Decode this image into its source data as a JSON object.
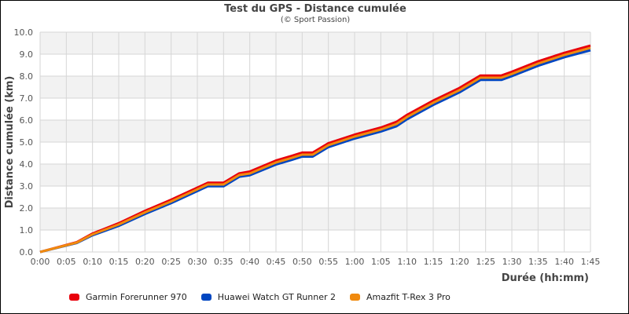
{
  "header": {
    "title": "Test du GPS - Distance cumulée",
    "subtitle": "(© Sport Passion)"
  },
  "legend": [
    {
      "label": "Garmin Forerunner 970",
      "color": "#e8000b"
    },
    {
      "label": "Huawei Watch GT Runner 2",
      "color": "#0046c1"
    },
    {
      "label": "Amazfit T-Rex 3 Pro",
      "color": "#f08a0e"
    }
  ],
  "chart_data": {
    "type": "line",
    "title": "Test du GPS - Distance cumulée",
    "subtitle": "(© Sport Passion)",
    "xlabel": "Durée (hh:mm)",
    "ylabel": "Distance cumulée (km)",
    "xlim": [
      0,
      105
    ],
    "ylim": [
      0,
      10
    ],
    "grid": true,
    "legend_position": "bottom",
    "x_tick_labels": [
      "0:00",
      "0:05",
      "0:10",
      "0:15",
      "0:20",
      "0:25",
      "0:30",
      "0:35",
      "0:40",
      "0:45",
      "0:50",
      "0:55",
      "1:00",
      "1:05",
      "1:10",
      "1:15",
      "1:20",
      "1:25",
      "1:30",
      "1:35",
      "1:40",
      "1:45"
    ],
    "y_tick_labels": [
      "0.0",
      "1.0",
      "2.0",
      "3.0",
      "4.0",
      "5.0",
      "6.0",
      "7.0",
      "8.0",
      "9.0",
      "10.0"
    ],
    "x": [
      0,
      7,
      10,
      15,
      20,
      25,
      30,
      32,
      35,
      38,
      40,
      45,
      48,
      50,
      52,
      55,
      60,
      65,
      68,
      70,
      75,
      80,
      84,
      88,
      90,
      95,
      100,
      105
    ],
    "series": [
      {
        "name": "Garmin Forerunner 970",
        "color": "#e8000b",
        "values": [
          0.0,
          0.45,
          0.84,
          1.31,
          1.87,
          2.38,
          2.93,
          3.15,
          3.15,
          3.58,
          3.66,
          4.16,
          4.37,
          4.52,
          4.52,
          4.95,
          5.34,
          5.66,
          5.92,
          6.24,
          6.89,
          7.46,
          8.03,
          8.03,
          8.2,
          8.67,
          9.06,
          9.39
        ]
      },
      {
        "name": "Huawei Watch GT Runner 2",
        "color": "#0046c1",
        "values": [
          0.0,
          0.41,
          0.76,
          1.19,
          1.73,
          2.22,
          2.77,
          2.99,
          2.99,
          3.42,
          3.49,
          3.98,
          4.19,
          4.34,
          4.34,
          4.77,
          5.16,
          5.48,
          5.72,
          6.04,
          6.69,
          7.26,
          7.83,
          7.83,
          8.0,
          8.47,
          8.86,
          9.18
        ]
      },
      {
        "name": "Amazfit T-Rex 3 Pro",
        "color": "#f08a0e",
        "values": [
          0.0,
          0.43,
          0.8,
          1.25,
          1.8,
          2.3,
          2.85,
          3.07,
          3.07,
          3.5,
          3.57,
          4.07,
          4.28,
          4.43,
          4.43,
          4.86,
          5.25,
          5.57,
          5.82,
          6.14,
          6.79,
          7.36,
          7.93,
          7.93,
          8.1,
          8.57,
          8.96,
          9.29
        ]
      }
    ]
  }
}
